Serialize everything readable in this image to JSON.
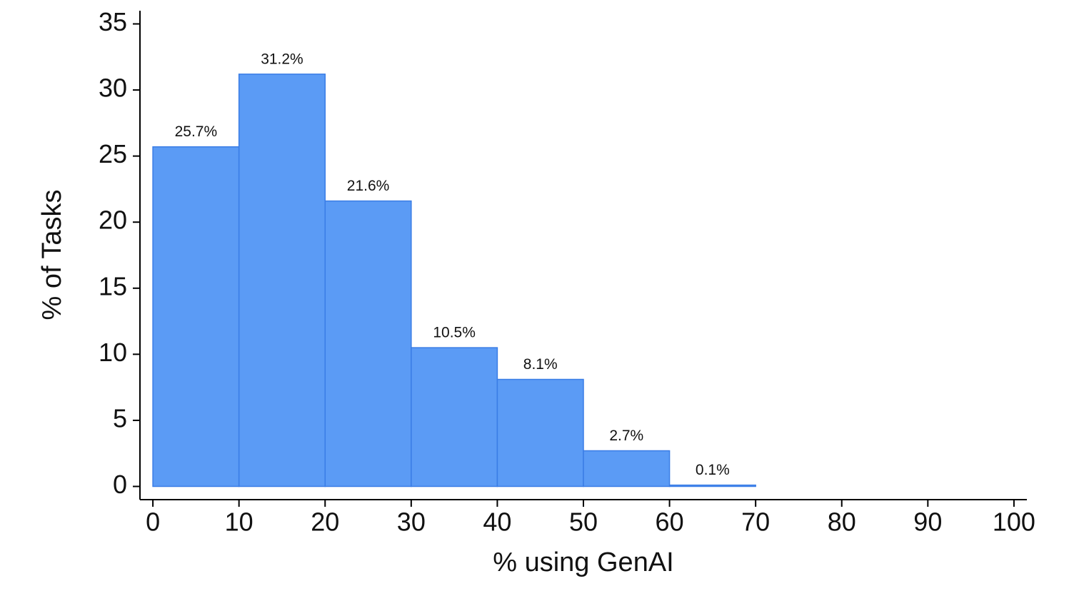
{
  "chart_data": {
    "type": "histogram",
    "xlabel": "% using GenAI",
    "ylabel": "% of Tasks",
    "bins": [
      0,
      10,
      20,
      30,
      40,
      50,
      60,
      70
    ],
    "values": [
      25.7,
      31.2,
      21.6,
      10.5,
      8.1,
      2.7,
      0.1
    ],
    "value_labels": [
      "25.7%",
      "31.2%",
      "21.6%",
      "10.5%",
      "8.1%",
      "2.7%",
      "0.1%"
    ],
    "color": "#5b9bf5",
    "edgecolor": "#3a7de6",
    "xlim": [
      -1.5,
      101.5
    ],
    "ylim": [
      -1,
      36
    ],
    "xticks": [
      0,
      10,
      20,
      30,
      40,
      50,
      60,
      70,
      80,
      90,
      100
    ],
    "yticks": [
      0,
      5,
      10,
      15,
      20,
      25,
      30,
      35
    ]
  }
}
